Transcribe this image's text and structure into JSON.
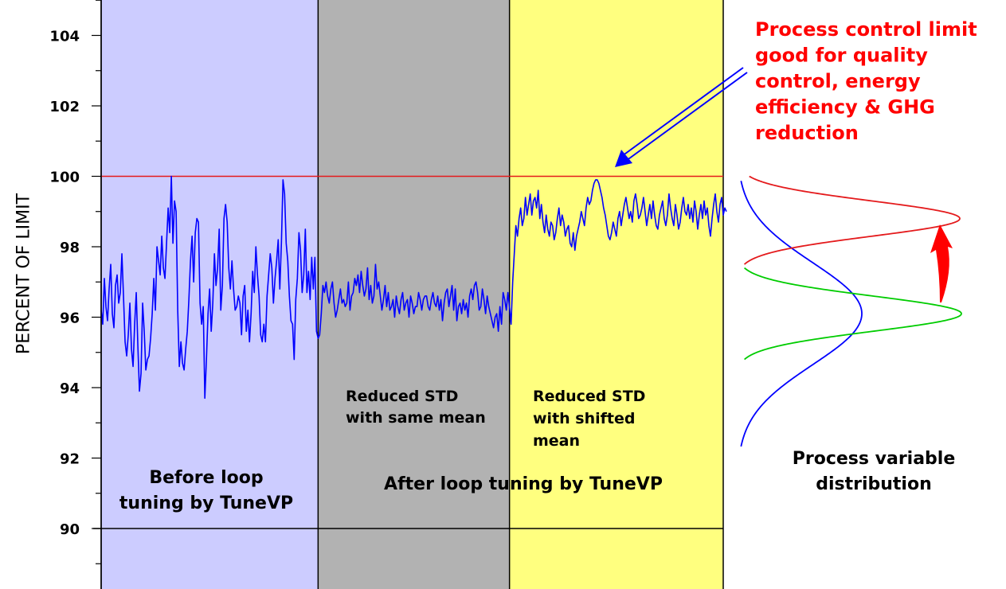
{
  "chart_data": {
    "type": "line",
    "title": "",
    "xlabel": "",
    "ylabel": "PERCENT OF LIMIT",
    "ylim": [
      88.3,
      105
    ],
    "yticks": [
      90,
      92,
      94,
      96,
      98,
      100,
      102,
      104
    ],
    "ytick_labels": [
      "90",
      "92",
      "94",
      "96",
      "98",
      "100",
      "102",
      "104"
    ],
    "grid": false,
    "limit_line": {
      "value": 100,
      "color": "#e41a1c"
    },
    "baseline_line": {
      "value": 90,
      "color": "#000000"
    },
    "regions": [
      {
        "label": "Before loop tuning by TuneVP",
        "color": "#ccccff",
        "x_start": 0,
        "x_end": 136
      },
      {
        "label": "Reduced STD with same mean",
        "color": "#b2b2b2",
        "x_start": 136,
        "x_end": 256
      },
      {
        "label": "Reduced STD with shifted mean",
        "color": "#ffff7f",
        "x_start": 256,
        "x_end": 390
      }
    ],
    "series": [
      {
        "color": "#0000ff",
        "x_start": 0,
        "x_step": 1,
        "values": [
          96.2,
          95.8,
          97.1,
          96.3,
          95.9,
          96.8,
          97.5,
          96.1,
          95.7,
          96.9,
          97.2,
          96.4,
          96.7,
          97.8,
          96.6,
          95.3,
          94.9,
          95.5,
          96.4,
          95.1,
          94.6,
          95.8,
          96.7,
          95.2,
          93.9,
          94.4,
          96.4,
          95.6,
          94.5,
          94.8,
          94.9,
          95.4,
          96.1,
          97.1,
          96.2,
          98.0,
          97.6,
          97.2,
          98.3,
          97.4,
          97.1,
          98.1,
          99.1,
          98.4,
          100.0,
          98.1,
          99.3,
          99.0,
          96.2,
          94.6,
          95.3,
          94.7,
          94.5,
          95.1,
          95.6,
          96.5,
          97.6,
          98.3,
          97.0,
          98.4,
          98.8,
          98.7,
          96.4,
          95.8,
          96.3,
          93.7,
          94.8,
          96.1,
          96.8,
          95.6,
          96.4,
          97.8,
          96.9,
          97.4,
          98.5,
          96.2,
          96.9,
          98.8,
          99.2,
          98.7,
          97.4,
          96.8,
          97.6,
          96.8,
          96.2,
          96.3,
          96.6,
          96.4,
          95.5,
          96.6,
          96.9,
          95.6,
          96.2,
          95.3,
          96.1,
          97.3,
          96.7,
          98.0,
          97.2,
          96.6,
          95.5,
          95.3,
          95.8,
          95.3,
          96.6,
          97.2,
          97.8,
          97.4,
          96.4,
          97.1,
          97.6,
          98.2,
          96.8,
          98.1,
          99.9,
          99.5,
          98.1,
          97.6,
          96.6,
          95.9,
          95.8,
          94.8,
          96.5,
          97.1,
          98.4,
          97.9,
          96.7,
          97.2,
          98.5,
          96.7,
          97.3,
          96.5,
          97.7,
          96.8,
          97.7,
          95.6,
          95.4,
          95.5,
          96.1,
          96.9,
          96.7,
          97.0,
          96.6,
          96.4,
          96.8,
          97.0,
          96.4,
          96.0,
          96.2,
          96.5,
          96.8,
          96.4,
          96.5,
          96.3,
          96.4,
          97.0,
          96.2,
          96.6,
          96.7,
          97.1,
          96.9,
          97.2,
          96.7,
          97.3,
          96.9,
          96.6,
          96.8,
          97.4,
          96.5,
          96.9,
          96.4,
          96.6,
          97.5,
          96.8,
          97.0,
          96.6,
          96.2,
          96.5,
          96.9,
          96.3,
          96.7,
          96.2,
          96.3,
          96.5,
          96.0,
          96.6,
          96.3,
          96.1,
          96.5,
          96.7,
          96.2,
          96.4,
          96.5,
          96.0,
          96.6,
          96.4,
          96.1,
          96.3,
          96.3,
          96.7,
          96.5,
          96.2,
          96.5,
          96.6,
          96.6,
          96.3,
          96.2,
          96.5,
          96.7,
          96.4,
          96.3,
          96.6,
          96.2,
          96.5,
          95.9,
          96.4,
          96.7,
          96.8,
          96.3,
          96.6,
          96.9,
          96.2,
          96.8,
          95.9,
          96.3,
          96.4,
          96.1,
          96.5,
          96.2,
          96.4,
          96.0,
          96.6,
          96.8,
          96.5,
          96.9,
          97.0,
          96.7,
          96.2,
          96.3,
          96.8,
          96.5,
          96.1,
          96.6,
          96.3,
          96.1,
          95.9,
          95.7,
          96.0,
          96.1,
          95.6,
          96.3,
          95.8,
          96.7,
          96.5,
          96.2,
          96.7,
          96.3,
          95.8,
          97.0,
          97.8,
          98.6,
          98.3,
          98.8,
          99.1,
          98.6,
          98.8,
          99.4,
          98.9,
          99.2,
          99.5,
          98.9,
          99.3,
          99.4,
          99.1,
          99.6,
          98.8,
          99.2,
          98.7,
          98.4,
          98.9,
          98.5,
          98.3,
          98.7,
          98.6,
          98.2,
          98.4,
          98.8,
          99.1,
          98.6,
          98.9,
          98.7,
          98.3,
          98.5,
          98.6,
          98.1,
          98.0,
          98.4,
          97.9,
          98.3,
          98.5,
          98.7,
          99.0,
          98.8,
          98.6,
          99.1,
          99.4,
          99.2,
          99.3,
          99.6,
          99.8,
          99.9,
          99.9,
          99.8,
          99.6,
          99.4,
          99.1,
          98.9,
          98.6,
          98.3,
          98.2,
          98.4,
          98.7,
          98.5,
          98.3,
          98.8,
          99.0,
          98.6,
          98.9,
          99.2,
          99.4,
          99.1,
          98.8,
          99.0,
          98.7,
          99.3,
          99.5,
          99.2,
          98.8,
          98.9,
          99.1,
          99.4,
          99.0,
          98.6,
          98.9,
          99.2,
          98.8,
          99.3,
          98.9,
          98.6,
          98.5,
          98.9,
          99.1,
          99.3,
          98.8,
          98.6,
          98.9,
          99.5,
          99.1,
          98.8,
          98.6,
          99.2,
          98.9,
          98.5,
          98.7,
          99.1,
          99.4,
          99.0,
          98.9,
          99.2,
          98.8,
          99.1,
          98.7,
          99.3,
          99.0,
          98.5,
          98.9,
          99.2,
          98.8,
          99.3,
          98.9,
          99.1,
          98.6,
          98.3,
          98.8,
          99.2,
          99.5,
          99.0,
          98.7,
          99.2,
          99.4,
          98.9,
          99.1,
          99.0
        ]
      }
    ],
    "annotations": [
      {
        "text": "Process control limit good for quality control, energy efficiency & GHG reduction",
        "color": "#ff0000"
      },
      {
        "text": "Process variable distribution",
        "color": "#000000"
      }
    ],
    "distribution_curves": [
      {
        "name": "before",
        "color": "#0000ff",
        "mean": 96.1,
        "std": 1.45
      },
      {
        "name": "reduced-std-same-mean",
        "color": "#00cc00",
        "mean": 96.1,
        "std": 0.5
      },
      {
        "name": "reduced-std-shifted-mean",
        "color": "#e41a1c",
        "mean": 98.8,
        "std": 0.5
      }
    ]
  },
  "labels": {
    "region1_lines": [
      "Before loop",
      "tuning by TuneVP"
    ],
    "region2_lines": [
      "Reduced STD",
      "with same mean"
    ],
    "region3_lines": [
      "Reduced STD",
      "with shifted",
      "mean"
    ],
    "after_label": "After loop tuning by TuneVP",
    "callout_lines": [
      "Process control limit",
      "good for quality",
      "control, energy",
      "efficiency & GHG",
      "reduction"
    ],
    "distribution_lines": [
      "Process variable",
      "distribution"
    ]
  }
}
